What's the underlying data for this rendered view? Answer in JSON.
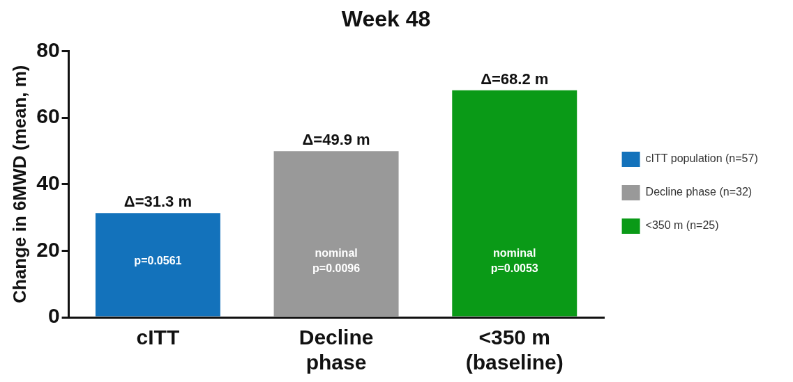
{
  "chart_data": {
    "type": "bar",
    "title": "Week 48",
    "ylabel": "Change in 6MWD (mean, m)",
    "categories": [
      "cITT",
      "Decline\nphase",
      "<350 m\n(baseline)"
    ],
    "series": [
      {
        "name": "cITT population (n=57)",
        "color": "#1372bb",
        "values": [
          31.3,
          null,
          null
        ],
        "value_labels": [
          "Δ=31.3 m",
          null,
          null
        ]
      },
      {
        "name": "Decline phase (n=32)",
        "color": "#999999",
        "values": [
          null,
          49.9,
          null
        ],
        "value_labels": [
          null,
          "Δ=49.9 m",
          null
        ]
      },
      {
        "name": "<350 m (n=25)",
        "color": "#0a9a17",
        "values": [
          null,
          null,
          68.2
        ],
        "value_labels": [
          null,
          null,
          "Δ=68.2 m"
        ]
      }
    ],
    "ylim": [
      0,
      80
    ],
    "yticks": [
      0,
      20,
      40,
      60,
      80
    ],
    "grid": false,
    "legend": "right",
    "annotations": [
      "p=0.0561",
      "nominal\np=0.0096",
      "nominal\np=0.0053"
    ]
  }
}
